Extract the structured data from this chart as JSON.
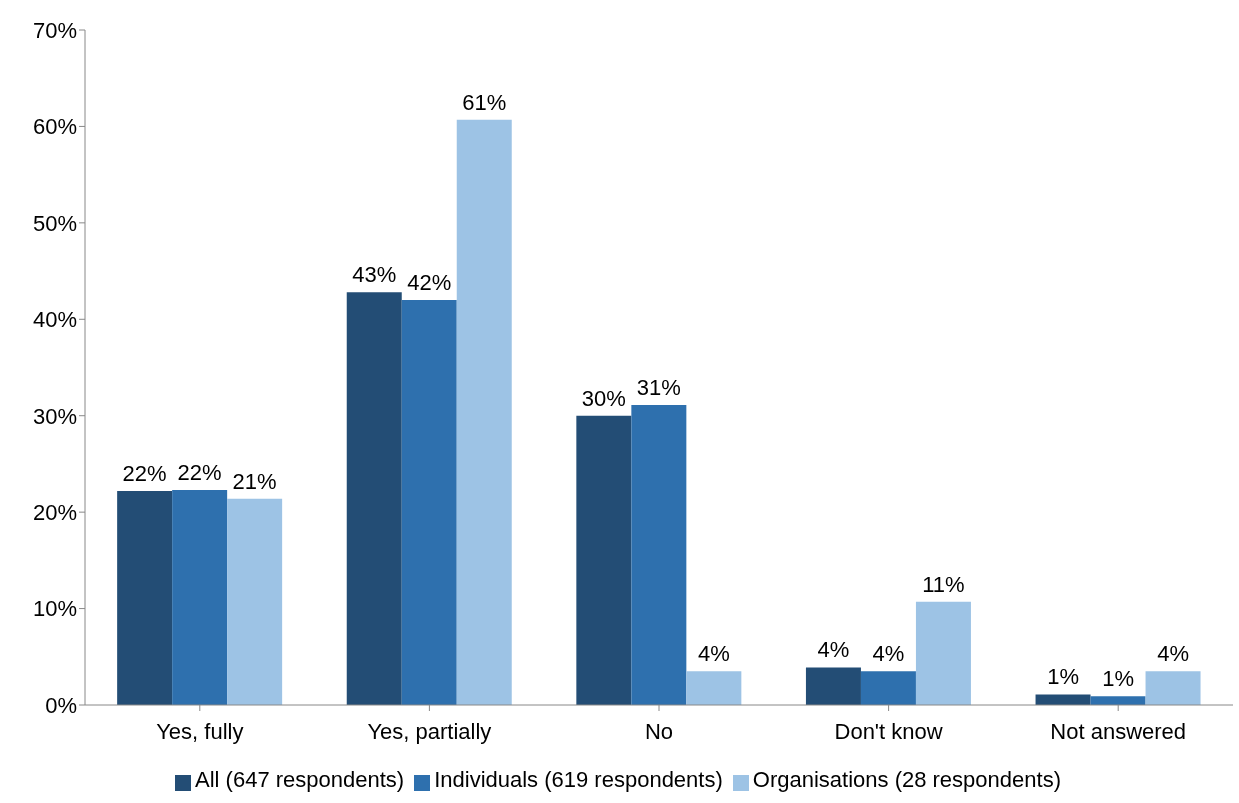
{
  "chart_data": {
    "type": "bar",
    "categories": [
      "Yes, fully",
      "Yes, partially",
      "No",
      "Don't know",
      "Not answered"
    ],
    "series": [
      {
        "name": "All (647 respondents)",
        "color": "#234d75",
        "values": [
          22.2,
          42.8,
          30.0,
          3.9,
          1.1
        ],
        "value_labels": [
          "22%",
          "43%",
          "30%",
          "4%",
          "1%"
        ]
      },
      {
        "name": "Individuals (619 respondents)",
        "color": "#2e70ae",
        "values": [
          22.3,
          42.0,
          31.1,
          3.5,
          0.9
        ],
        "value_labels": [
          "22%",
          "42%",
          "31%",
          "4%",
          "1%"
        ]
      },
      {
        "name": "Organisations (28 respondents)",
        "color": "#9dc3e5",
        "values": [
          21.4,
          60.7,
          3.5,
          10.7,
          3.5
        ],
        "value_labels": [
          "21%",
          "61%",
          "4%",
          "11%",
          "4%"
        ]
      }
    ],
    "ylim": [
      0,
      70
    ],
    "yticks": [
      {
        "value": 0,
        "label": "0%"
      },
      {
        "value": 10,
        "label": "10%"
      },
      {
        "value": 20,
        "label": "20%"
      },
      {
        "value": 30,
        "label": "30%"
      },
      {
        "value": 40,
        "label": "40%"
      },
      {
        "value": 50,
        "label": "50%"
      },
      {
        "value": 60,
        "label": "60%"
      },
      {
        "value": 70,
        "label": "70%"
      }
    ],
    "grid": false,
    "legend": "bottom"
  }
}
